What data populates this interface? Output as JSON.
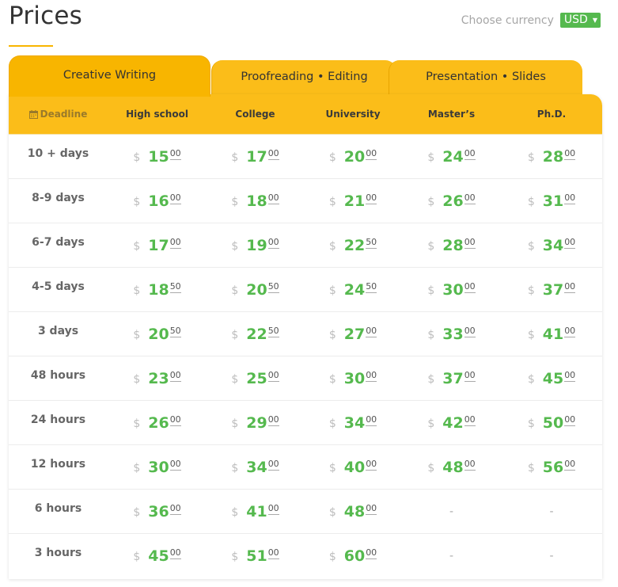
{
  "page": {
    "title": "Prices"
  },
  "currency": {
    "label": "Choose currency",
    "selected": "USD",
    "caret_icon": "caret-down-icon"
  },
  "tabs": [
    {
      "label": "Creative Writing",
      "active": true
    },
    {
      "label": "Proofreading • Editing",
      "active": false
    },
    {
      "label": "Presentation • Slides",
      "active": false
    }
  ],
  "table": {
    "headers": [
      "Deadline",
      "High school",
      "College",
      "University",
      "Master’s",
      "Ph.D."
    ],
    "deadline_icon": "calendar-icon",
    "currency_symbol": "$",
    "empty_symbol": "-",
    "rows": [
      {
        "deadline": "10 + days",
        "prices": [
          [
            "15",
            "00"
          ],
          [
            "17",
            "00"
          ],
          [
            "20",
            "00"
          ],
          [
            "24",
            "00"
          ],
          [
            "28",
            "00"
          ]
        ]
      },
      {
        "deadline": "8-9 days",
        "prices": [
          [
            "16",
            "00"
          ],
          [
            "18",
            "00"
          ],
          [
            "21",
            "00"
          ],
          [
            "26",
            "00"
          ],
          [
            "31",
            "00"
          ]
        ]
      },
      {
        "deadline": "6-7 days",
        "prices": [
          [
            "17",
            "00"
          ],
          [
            "19",
            "00"
          ],
          [
            "22",
            "50"
          ],
          [
            "28",
            "00"
          ],
          [
            "34",
            "00"
          ]
        ]
      },
      {
        "deadline": "4-5 days",
        "prices": [
          [
            "18",
            "50"
          ],
          [
            "20",
            "50"
          ],
          [
            "24",
            "50"
          ],
          [
            "30",
            "00"
          ],
          [
            "37",
            "00"
          ]
        ]
      },
      {
        "deadline": "3 days",
        "prices": [
          [
            "20",
            "50"
          ],
          [
            "22",
            "50"
          ],
          [
            "27",
            "00"
          ],
          [
            "33",
            "00"
          ],
          [
            "41",
            "00"
          ]
        ]
      },
      {
        "deadline": "48 hours",
        "prices": [
          [
            "23",
            "00"
          ],
          [
            "25",
            "00"
          ],
          [
            "30",
            "00"
          ],
          [
            "37",
            "00"
          ],
          [
            "45",
            "00"
          ]
        ]
      },
      {
        "deadline": "24 hours",
        "prices": [
          [
            "26",
            "00"
          ],
          [
            "29",
            "00"
          ],
          [
            "34",
            "00"
          ],
          [
            "42",
            "00"
          ],
          [
            "50",
            "00"
          ]
        ]
      },
      {
        "deadline": "12 hours",
        "prices": [
          [
            "30",
            "00"
          ],
          [
            "34",
            "00"
          ],
          [
            "40",
            "00"
          ],
          [
            "48",
            "00"
          ],
          [
            "56",
            "00"
          ]
        ]
      },
      {
        "deadline": "6 hours",
        "prices": [
          [
            "36",
            "00"
          ],
          [
            "41",
            "00"
          ],
          [
            "48",
            "00"
          ],
          null,
          null
        ]
      },
      {
        "deadline": "3 hours",
        "prices": [
          [
            "45",
            "00"
          ],
          [
            "51",
            "00"
          ],
          [
            "60",
            "00"
          ],
          null,
          null
        ]
      }
    ]
  },
  "colors": {
    "accent": "#fbbd19",
    "active_tab": "#f8b500",
    "price_green": "#55b94e",
    "currency_badge": "#55b94e"
  }
}
